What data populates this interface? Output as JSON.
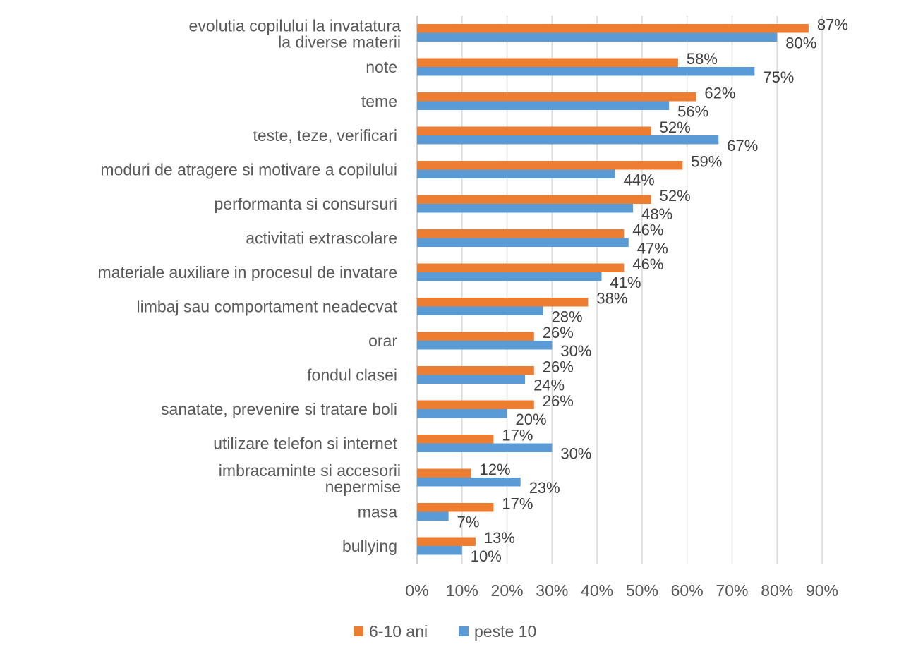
{
  "chart_data": {
    "type": "bar",
    "orientation": "horizontal",
    "categories": [
      [
        "evolutia copilului la invatatura",
        "la diverse materii"
      ],
      [
        "note"
      ],
      [
        "teme"
      ],
      [
        "teste, teze, verificari"
      ],
      [
        "moduri de atragere si motivare a copilului"
      ],
      [
        "performanta si consursuri"
      ],
      [
        "activitati extrascolare"
      ],
      [
        "materiale auxiliare in procesul de invatare"
      ],
      [
        "limbaj sau comportament neadecvat"
      ],
      [
        "orar"
      ],
      [
        "fondul clasei"
      ],
      [
        "sanatate, prevenire si tratare boli"
      ],
      [
        "utilizare telefon si internet"
      ],
      [
        "imbracaminte si accesorii",
        "nepermise"
      ],
      [
        "masa"
      ],
      [
        "bullying"
      ]
    ],
    "series": [
      {
        "name": "6-10 ani",
        "color": "#ED7D31",
        "values": [
          87,
          58,
          62,
          52,
          59,
          52,
          46,
          46,
          38,
          26,
          26,
          26,
          17,
          12,
          17,
          13
        ],
        "labels": [
          "87%",
          "58%",
          "62%",
          "52%",
          "59%",
          "52%",
          "46%",
          "46%",
          "38%",
          "26%",
          "26%",
          "26%",
          "17%",
          "12%",
          "17%",
          "13%"
        ]
      },
      {
        "name": "peste 10",
        "color": "#5B9BD5",
        "values": [
          80,
          75,
          56,
          67,
          44,
          48,
          47,
          41,
          28,
          30,
          24,
          20,
          30,
          23,
          7,
          10
        ],
        "labels": [
          "80%",
          "75%",
          "56%",
          "67%",
          "44%",
          "48%",
          "47%",
          "41%",
          "28%",
          "30%",
          "24%",
          "20%",
          "30%",
          "23%",
          "7%",
          "10%"
        ]
      }
    ],
    "xlim": [
      0,
      90
    ],
    "x_ticks": [
      "0%",
      "10%",
      "20%",
      "30%",
      "40%",
      "50%",
      "60%",
      "70%",
      "80%",
      "90%"
    ],
    "grid": true,
    "legend_position": "bottom"
  }
}
